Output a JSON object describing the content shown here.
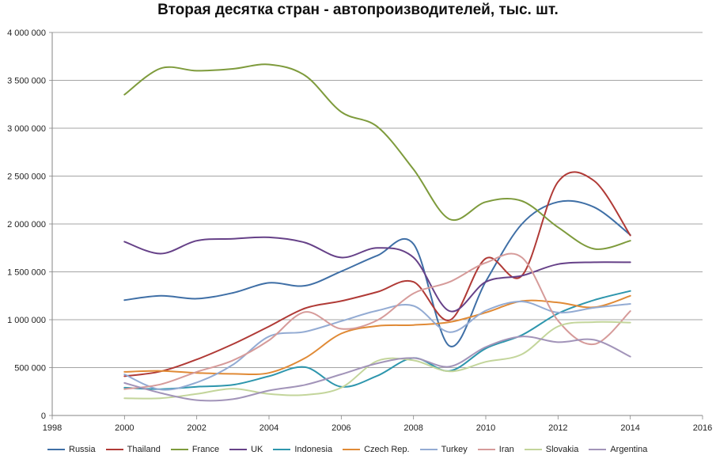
{
  "chart_data": {
    "type": "line",
    "title": "Вторая десятка стран - автопроизводителей, тыс. шт.",
    "xlabel": "",
    "ylabel": "",
    "xlim": [
      1998,
      2016
    ],
    "ylim": [
      0,
      4000000
    ],
    "x_ticks": [
      1998,
      2000,
      2002,
      2004,
      2006,
      2008,
      2010,
      2012,
      2014,
      2016
    ],
    "y_ticks": [
      0,
      500000,
      1000000,
      1500000,
      2000000,
      2500000,
      3000000,
      3500000,
      4000000
    ],
    "y_tick_labels": [
      "0",
      "500 000",
      "1 000 000",
      "1 500 000",
      "2 000 000",
      "2 500 000",
      "3 000 000",
      "3 500 000",
      "4 000 000"
    ],
    "grid": "horizontal",
    "legend_position": "bottom",
    "x": [
      2000,
      2001,
      2002,
      2003,
      2004,
      2005,
      2006,
      2007,
      2008,
      2009,
      2010,
      2011,
      2012,
      2013,
      2014
    ],
    "series": [
      {
        "name": "Russia",
        "color": "#3f6fa6",
        "values": [
          1205000,
          1250000,
          1220000,
          1280000,
          1385000,
          1355000,
          1505000,
          1670000,
          1790000,
          725000,
          1400000,
          2000000,
          2230000,
          2175000,
          1885000
        ]
      },
      {
        "name": "Thailand",
        "color": "#b03a36",
        "values": [
          410000,
          460000,
          585000,
          745000,
          930000,
          1120000,
          1195000,
          1290000,
          1395000,
          995000,
          1640000,
          1460000,
          2440000,
          2450000,
          1880000
        ]
      },
      {
        "name": "France",
        "color": "#7e9b3c",
        "values": [
          3350000,
          3625000,
          3600000,
          3620000,
          3665000,
          3550000,
          3170000,
          3015000,
          2570000,
          2050000,
          2230000,
          2240000,
          1965000,
          1740000,
          1825000
        ]
      },
      {
        "name": "UK",
        "color": "#664188",
        "values": [
          1815000,
          1690000,
          1825000,
          1845000,
          1860000,
          1805000,
          1650000,
          1750000,
          1650000,
          1090000,
          1395000,
          1460000,
          1580000,
          1600000,
          1600000
        ]
      },
      {
        "name": "Indonesia",
        "color": "#2e96ad",
        "values": [
          290000,
          275000,
          300000,
          320000,
          410000,
          505000,
          300000,
          415000,
          600000,
          465000,
          700000,
          840000,
          1065000,
          1205000,
          1300000
        ]
      },
      {
        "name": "Czech Rep.",
        "color": "#e08a36",
        "values": [
          455000,
          465000,
          445000,
          435000,
          445000,
          600000,
          855000,
          935000,
          945000,
          975000,
          1075000,
          1195000,
          1180000,
          1130000,
          1250000
        ]
      },
      {
        "name": "Turkey",
        "color": "#93abd3",
        "values": [
          430000,
          270000,
          345000,
          530000,
          825000,
          875000,
          985000,
          1095000,
          1145000,
          870000,
          1095000,
          1190000,
          1075000,
          1125000,
          1165000
        ]
      },
      {
        "name": "Iran",
        "color": "#d69b9a",
        "values": [
          275000,
          325000,
          455000,
          575000,
          785000,
          1080000,
          905000,
          995000,
          1275000,
          1395000,
          1595000,
          1650000,
          990000,
          745000,
          1090000
        ]
      },
      {
        "name": "Slovakia",
        "color": "#c3d59b",
        "values": [
          180000,
          180000,
          225000,
          280000,
          225000,
          215000,
          290000,
          570000,
          575000,
          460000,
          560000,
          640000,
          930000,
          975000,
          970000
        ]
      },
      {
        "name": "Argentina",
        "color": "#a294b9",
        "values": [
          340000,
          235000,
          160000,
          170000,
          260000,
          320000,
          430000,
          545000,
          600000,
          510000,
          715000,
          825000,
          765000,
          790000,
          615000
        ]
      }
    ]
  }
}
